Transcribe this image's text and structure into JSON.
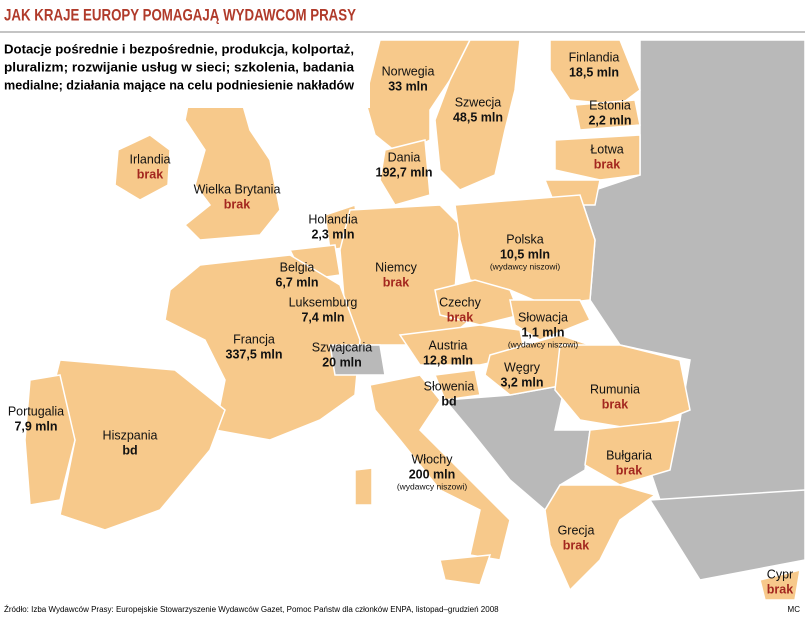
{
  "header": {
    "title": "JAK KRAJE EUROPY POMAGAJĄ WYDAWCOM PRASY",
    "subtitle": [
      "Dotacje pośrednie i bezpośrednie, produkcja, kolportaż,",
      "pluralizm; rozwijanie usług w sieci; szkolenia, badania",
      "medialne; działania mające na celu podniesienie nakładów"
    ]
  },
  "countries": [
    {
      "name": "Finlandia",
      "value": "18,5 mln"
    },
    {
      "name": "Norwegia",
      "value": "33 mln"
    },
    {
      "name": "Szwecja",
      "value": "48,5 mln"
    },
    {
      "name": "Estonia",
      "value": "2,2 mln"
    },
    {
      "name": "Łotwa",
      "value": "brak"
    },
    {
      "name": "Irlandia",
      "value": "brak"
    },
    {
      "name": "Dania",
      "value": "192,7 mln"
    },
    {
      "name": "Wielka Brytania",
      "value": "brak"
    },
    {
      "name": "Holandia",
      "value": "2,3 mln"
    },
    {
      "name": "Polska",
      "value": "10,5 mln",
      "note": "(wydawcy niszowi)"
    },
    {
      "name": "Belgia",
      "value": "6,7 mln"
    },
    {
      "name": "Niemcy",
      "value": "brak"
    },
    {
      "name": "Luksemburg",
      "value": "7,4 mln"
    },
    {
      "name": "Czechy",
      "value": "brak"
    },
    {
      "name": "Słowacja",
      "value": "1,1 mln",
      "note": "(wydawcy niszowi)"
    },
    {
      "name": "Francja",
      "value": "337,5 mln"
    },
    {
      "name": "Szwajcaria",
      "value": "20 mln"
    },
    {
      "name": "Austria",
      "value": "12,8 mln"
    },
    {
      "name": "Węgry",
      "value": "3,2 mln"
    },
    {
      "name": "Rumunia",
      "value": "brak"
    },
    {
      "name": "Słowenia",
      "value": "bd"
    },
    {
      "name": "Portugalia",
      "value": "7,9 mln"
    },
    {
      "name": "Hiszpania",
      "value": "bd"
    },
    {
      "name": "Bułgaria",
      "value": "brak"
    },
    {
      "name": "Włochy",
      "value": "200 mln",
      "note": "(wydawcy niszowi)"
    },
    {
      "name": "Grecja",
      "value": "brak"
    },
    {
      "name": "Cypr",
      "value": "brak"
    }
  ],
  "footer": {
    "source": "Źródło: Izba Wydawców Prasy: Europejskie Stowarzyszenie Wydawców Gazet, Pomoc Państw dla członków ENPA, listopad–grudzień 2008",
    "credit": "MC"
  }
}
